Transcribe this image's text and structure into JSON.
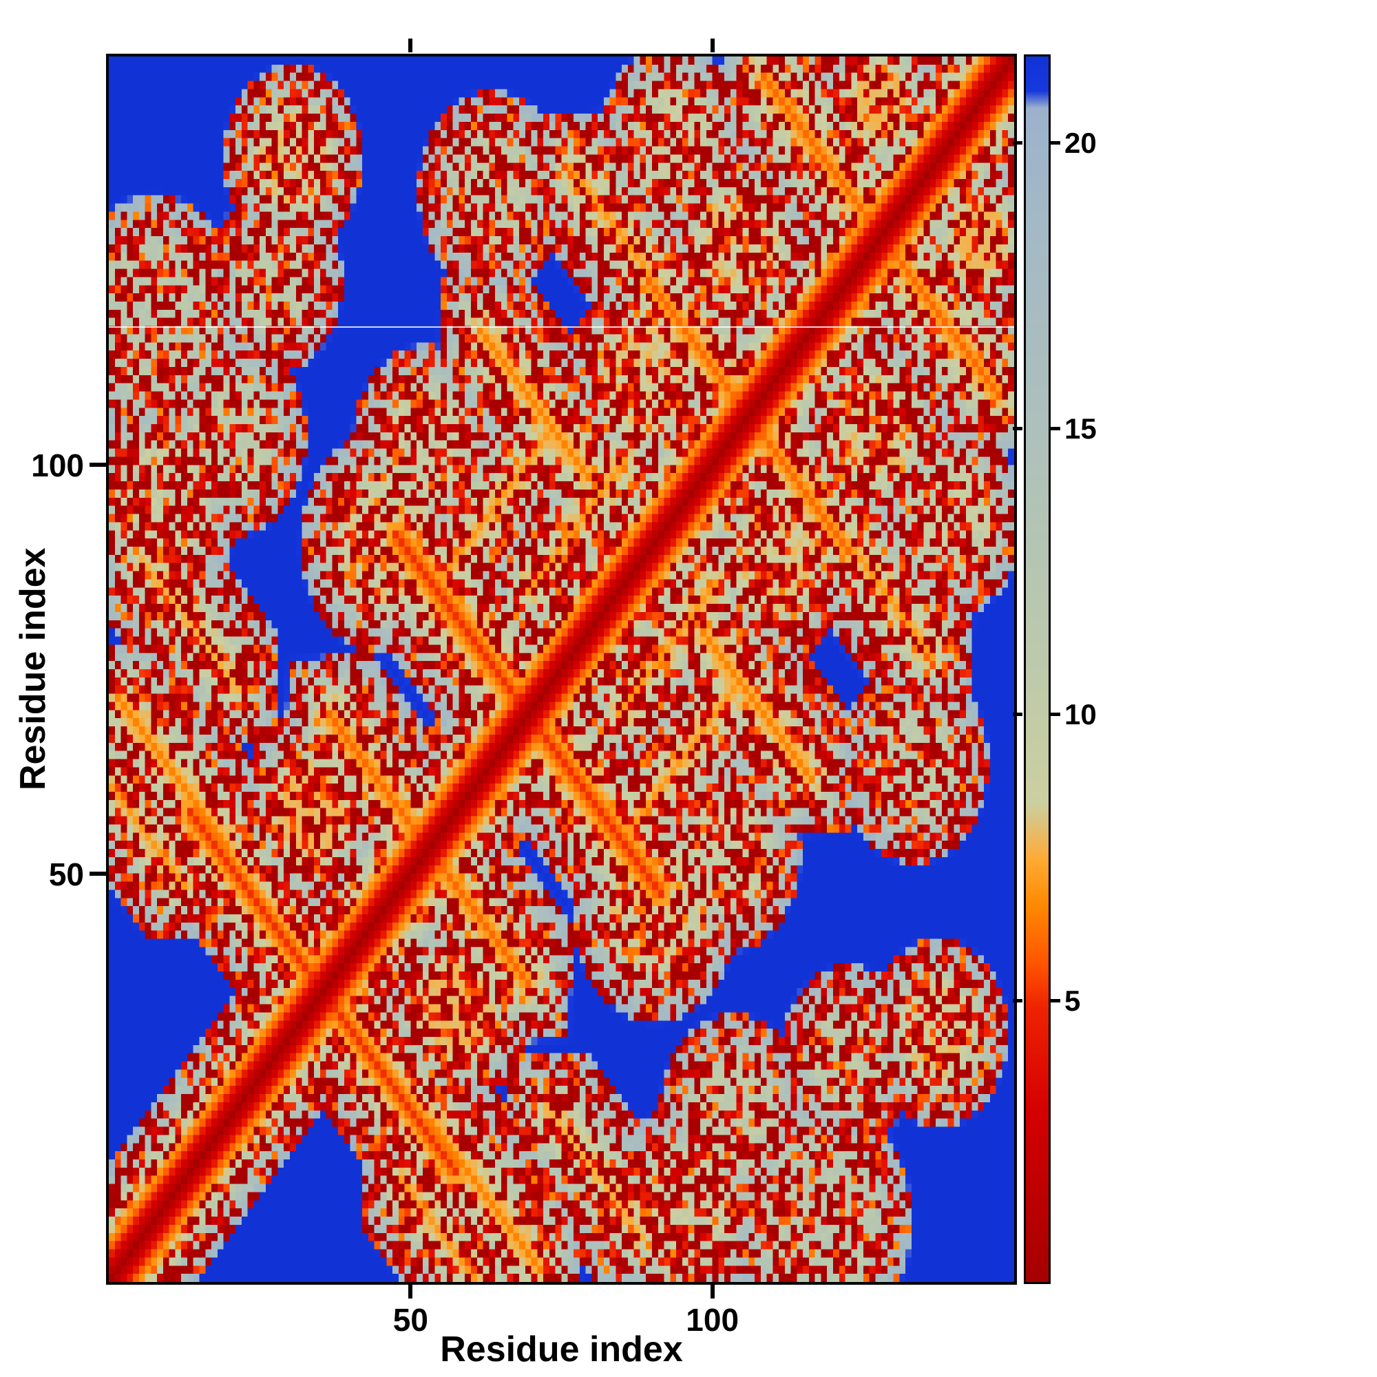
{
  "figure": {
    "background": "#ffffff",
    "frame_color": "#000000"
  },
  "chart_data": {
    "type": "heatmap",
    "title": "",
    "xlabel": "Residue index",
    "ylabel": "Residue index",
    "n_residues": 150,
    "x_ticks": [
      50,
      100
    ],
    "y_ticks": [
      50,
      100
    ],
    "colorbar": {
      "ticks": [
        5,
        10,
        15,
        20
      ],
      "vmin": 0,
      "vmax": 21.5
    },
    "colormap_stops": [
      [
        0.0,
        "#a50000"
      ],
      [
        3.0,
        "#d40000"
      ],
      [
        4.8,
        "#ee2200"
      ],
      [
        5.6,
        "#ff5500"
      ],
      [
        6.6,
        "#ff8800"
      ],
      [
        7.4,
        "#ffaa33"
      ],
      [
        8.4,
        "#cccfa0"
      ],
      [
        11.0,
        "#bcc9ac"
      ],
      [
        15.0,
        "#adc0bc"
      ],
      [
        19.0,
        "#a2b8c6"
      ],
      [
        20.6,
        "#9cb2cc"
      ],
      [
        20.9,
        "#1638dd"
      ],
      [
        21.5,
        "#1133d6"
      ]
    ],
    "background_value_color": "#1133d6",
    "diagonal": {
      "slope": 1.45
    },
    "contact_clusters": [
      {
        "i": 5,
        "j": 55,
        "shape": "anti",
        "d": 7.0,
        "len": 7,
        "slope": 1.1
      },
      {
        "i": 10,
        "j": 62,
        "shape": "anti",
        "d": 6.5,
        "len": 9,
        "slope": 1.0
      },
      {
        "i": 13,
        "j": 80,
        "shape": "anti",
        "d": 7.5,
        "len": 8,
        "slope": 1.0
      },
      {
        "i": 8,
        "j": 95,
        "shape": "blob",
        "d": 11.0,
        "core": 7,
        "slope": 0.8
      },
      {
        "i": 7,
        "j": 117,
        "shape": "blob",
        "d": 13.0,
        "core": 9,
        "slope": 0.6
      },
      {
        "i": 24,
        "j": 46,
        "shape": "anti",
        "d": 5.0,
        "len": 11,
        "slope": 1.1
      },
      {
        "i": 33,
        "j": 57,
        "shape": "blob",
        "d": 8.0,
        "core": 5,
        "slope": 0.9
      },
      {
        "i": 44,
        "j": 61,
        "shape": "anti",
        "d": 6.0,
        "len": 8,
        "slope": 1.0
      },
      {
        "i": 30,
        "j": 137,
        "shape": "blob",
        "d": 9.0,
        "core": 5,
        "slope": 0.9
      },
      {
        "i": 27,
        "j": 122,
        "shape": "blob",
        "d": 12.0,
        "core": 5,
        "slope": 0.7
      },
      {
        "i": 20,
        "j": 103,
        "shape": "blob",
        "d": 12.0,
        "core": 6,
        "slope": 0.7
      },
      {
        "i": 45,
        "j": 90,
        "shape": "blob",
        "d": 10.0,
        "core": 7,
        "slope": 0.8
      },
      {
        "i": 52,
        "j": 102,
        "shape": "blob",
        "d": 11.0,
        "core": 6,
        "slope": 0.8
      },
      {
        "i": 59,
        "j": 79,
        "shape": "anti",
        "d": 5.0,
        "len": 12,
        "slope": 1.0
      },
      {
        "i": 64,
        "j": 95,
        "shape": "para",
        "d": 7.0,
        "len": 9,
        "slope": 1.1
      },
      {
        "i": 70,
        "j": 107,
        "shape": "anti",
        "d": 6.5,
        "len": 9,
        "slope": 1.0
      },
      {
        "i": 77,
        "j": 92,
        "shape": "para",
        "d": 7.0,
        "len": 8,
        "slope": 1.1
      },
      {
        "i": 85,
        "j": 127,
        "shape": "anti",
        "d": 7.0,
        "len": 9,
        "slope": 1.0
      },
      {
        "i": 88,
        "j": 110,
        "shape": "blob",
        "d": 9.0,
        "core": 6,
        "slope": 0.9
      },
      {
        "i": 97,
        "j": 114,
        "shape": "anti",
        "d": 6.0,
        "len": 8,
        "slope": 1.0
      },
      {
        "i": 104,
        "j": 126,
        "shape": "blob",
        "d": 9.0,
        "core": 6,
        "slope": 0.9
      },
      {
        "i": 117,
        "j": 138,
        "shape": "anti",
        "d": 6.0,
        "len": 9,
        "slope": 1.0
      },
      {
        "i": 127,
        "j": 144,
        "shape": "blob",
        "d": 8.0,
        "core": 4,
        "slope": 1.0
      },
      {
        "i": 63,
        "j": 133,
        "shape": "blob",
        "d": 12.0,
        "core": 6,
        "slope": 0.7
      },
      {
        "i": 93,
        "j": 139,
        "shape": "blob",
        "d": 11.0,
        "core": 6,
        "slope": 0.8
      }
    ],
    "texture": {
      "seed": 987,
      "lo": 7.5,
      "hi": 20.8,
      "amp": 6,
      "ripple": 0.7,
      "hole_threshold": 0.9,
      "hot_threshold": 0.07
    },
    "artifact_row": 117
  }
}
